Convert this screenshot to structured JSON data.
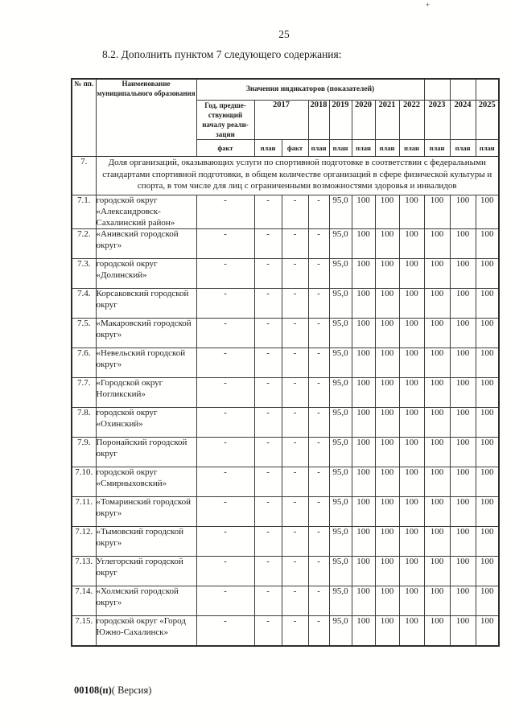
{
  "page": {
    "number": "25",
    "heading": "8.2. Дополнить пунктом 7 следующего содержания:",
    "corner_mark": "+",
    "footer_bold": "00108(п)",
    "footer_regular": "( Версия)"
  },
  "table": {
    "header": {
      "col_num": "№ пп.",
      "col_name": "Наименование муниципального образования",
      "values_group": "Значения индикаторов (показателей)",
      "prev_year": "Год, предше-\nствующий\nначалу реали-\nзации",
      "years": [
        "2017",
        "2018",
        "2019",
        "2020",
        "2021",
        "2022",
        "2023",
        "2024",
        "2025"
      ],
      "sub_labels": [
        "факт",
        "план",
        "факт",
        "план",
        "план",
        "план",
        "план",
        "план",
        "план",
        "план",
        "план"
      ]
    },
    "section_row": {
      "num": "7.",
      "text": "Доля организаций, оказывающих услуги по спортивной подготовке в соответствии с федеральными стандартами спортивной подготовки, в общем количестве организаций в сфере физической культуры и спорта, в том числе для лиц с ограниченными возможностями здоровья и инвалидов"
    },
    "rows": [
      {
        "num": "7.1.",
        "name": "городской округ «Александровск-Сахалинский район»",
        "values": [
          "-",
          "-",
          "-",
          "-",
          "95,0",
          "100",
          "100",
          "100",
          "100",
          "100",
          "100"
        ]
      },
      {
        "num": "7.2.",
        "name": "«Анивский городской округ»",
        "values": [
          "-",
          "-",
          "-",
          "-",
          "95,0",
          "100",
          "100",
          "100",
          "100",
          "100",
          "100"
        ]
      },
      {
        "num": "7.3.",
        "name": "городской округ «Долинский»",
        "values": [
          "-",
          "-",
          "-",
          "-",
          "95,0",
          "100",
          "100",
          "100",
          "100",
          "100",
          "100"
        ]
      },
      {
        "num": "7.4.",
        "name": "Корсаковский городской округ",
        "values": [
          "-",
          "-",
          "-",
          "-",
          "95,0",
          "100",
          "100",
          "100",
          "100",
          "100",
          "100"
        ]
      },
      {
        "num": "7.5.",
        "name": "«Макаровский городской округ»",
        "values": [
          "-",
          "-",
          "-",
          "-",
          "95,0",
          "100",
          "100",
          "100",
          "100",
          "100",
          "100"
        ]
      },
      {
        "num": "7.6.",
        "name": "«Невельский городской округ»",
        "values": [
          "-",
          "-",
          "-",
          "-",
          "95,0",
          "100",
          "100",
          "100",
          "100",
          "100",
          "100"
        ]
      },
      {
        "num": "7.7.",
        "name": "«Городской округ Ногликский»",
        "values": [
          "-",
          "-",
          "-",
          "-",
          "95,0",
          "100",
          "100",
          "100",
          "100",
          "100",
          "100"
        ]
      },
      {
        "num": "7.8.",
        "name": "городской округ «Охинский»",
        "values": [
          "-",
          "-",
          "-",
          "-",
          "95,0",
          "100",
          "100",
          "100",
          "100",
          "100",
          "100"
        ]
      },
      {
        "num": "7.9.",
        "name": "Поронайский городской округ",
        "values": [
          "-",
          "-",
          "-",
          "-",
          "95,0",
          "100",
          "100",
          "100",
          "100",
          "100",
          "100"
        ]
      },
      {
        "num": "7.10.",
        "name": "городской округ «Смирныховский»",
        "values": [
          "-",
          "-",
          "-",
          "-",
          "95,0",
          "100",
          "100",
          "100",
          "100",
          "100",
          "100"
        ]
      },
      {
        "num": "7.11.",
        "name": "«Томаринский городской округ»",
        "values": [
          "-",
          "-",
          "-",
          "-",
          "95,0",
          "100",
          "100",
          "100",
          "100",
          "100",
          "100"
        ]
      },
      {
        "num": "7.12.",
        "name": "«Тымовский городской округ»",
        "values": [
          "-",
          "-",
          "-",
          "-",
          "95,0",
          "100",
          "100",
          "100",
          "100",
          "100",
          "100"
        ]
      },
      {
        "num": "7.13.",
        "name": "Углегорский городской округ",
        "values": [
          "-",
          "-",
          "-",
          "-",
          "95,0",
          "100",
          "100",
          "100",
          "100",
          "100",
          "100"
        ]
      },
      {
        "num": "7.14.",
        "name": "«Холмский городской округ»",
        "values": [
          "-",
          "-",
          "-",
          "-",
          "95,0",
          "100",
          "100",
          "100",
          "100",
          "100",
          "100"
        ]
      },
      {
        "num": "7.15.",
        "name": "городской округ «Город Южно-Сахалинск»",
        "values": [
          "-",
          "-",
          "-",
          "-",
          "95,0",
          "100",
          "100",
          "100",
          "100",
          "100",
          "100"
        ]
      }
    ]
  }
}
